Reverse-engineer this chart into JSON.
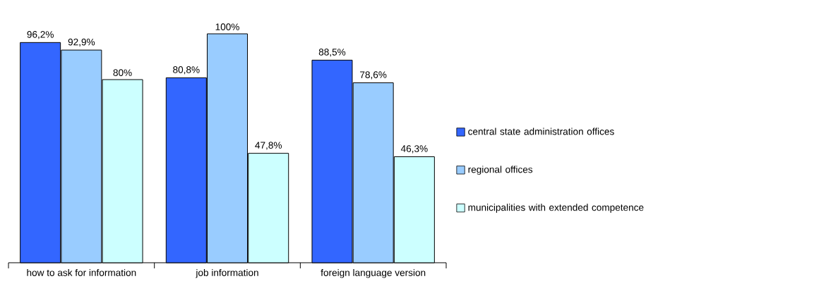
{
  "chart_data": {
    "type": "bar",
    "categories": [
      "how to ask for information",
      "job information",
      "foreign language version"
    ],
    "series": [
      {
        "name": "central state administration offices",
        "color": "#3366ff",
        "values": [
          96.2,
          80.8,
          88.5
        ],
        "value_labels": [
          "96,2%",
          "80,8%",
          "88,5%"
        ]
      },
      {
        "name": "regional offices",
        "color": "#99ccff",
        "values": [
          92.9,
          100,
          78.6
        ],
        "value_labels": [
          "92,9%",
          "100%",
          "78,6%"
        ]
      },
      {
        "name": "municipalities with extended competence",
        "color": "#ccffff",
        "values": [
          80,
          47.8,
          46.3
        ],
        "value_labels": [
          "80%",
          "47,8%",
          "46,3%"
        ]
      }
    ],
    "ylim": [
      0,
      100
    ],
    "legend": "right"
  }
}
